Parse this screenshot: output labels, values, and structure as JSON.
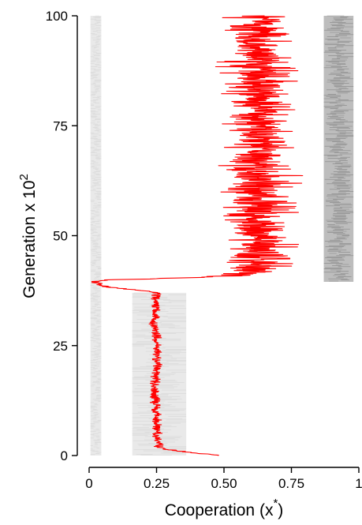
{
  "chart_data": {
    "type": "line",
    "orientation": "time-on-y",
    "xlabel": "Cooperation",
    "xlabel_symbol": "x",
    "xlabel_sup": "*",
    "ylabel": "Generation x 10",
    "ylabel_sup": "2",
    "xlim": [
      0,
      1
    ],
    "ylim": [
      0,
      100
    ],
    "x_ticks": [
      {
        "value": 0,
        "label": "0"
      },
      {
        "value": 0.25,
        "label": "0.25"
      },
      {
        "value": 0.5,
        "label": "0.50"
      },
      {
        "value": 0.75,
        "label": "0.75"
      },
      {
        "value": 1,
        "label": "1"
      }
    ],
    "y_ticks": [
      {
        "value": 0,
        "label": "0"
      },
      {
        "value": 25,
        "label": "25"
      },
      {
        "value": 50,
        "label": "50"
      },
      {
        "value": 75,
        "label": "75"
      },
      {
        "value": 100,
        "label": "100"
      }
    ],
    "grid": false,
    "legend": "none",
    "colors": {
      "mean": "#ff0000",
      "population": "#9a9a9a"
    },
    "series": [
      {
        "role": "mean",
        "points": [
          [
            0.49,
            0
          ],
          [
            0.4,
            0.5
          ],
          [
            0.33,
            1
          ],
          [
            0.28,
            1.5
          ],
          [
            0.26,
            2
          ],
          [
            0.25,
            5
          ],
          [
            0.25,
            10
          ],
          [
            0.24,
            15
          ],
          [
            0.25,
            20
          ],
          [
            0.25,
            25
          ],
          [
            0.24,
            30
          ],
          [
            0.25,
            35
          ],
          [
            0.25,
            37
          ],
          [
            0.2,
            37.5
          ],
          [
            0.12,
            38
          ],
          [
            0.06,
            38.5
          ],
          [
            0.03,
            39
          ],
          [
            0.02,
            39.5
          ],
          [
            0.04,
            39.8
          ],
          [
            0.1,
            40
          ],
          [
            0.3,
            40.3
          ],
          [
            0.45,
            40.6
          ],
          [
            0.55,
            41
          ],
          [
            0.62,
            42
          ],
          [
            0.63,
            50
          ],
          [
            0.63,
            60
          ],
          [
            0.63,
            70
          ],
          [
            0.63,
            80
          ],
          [
            0.63,
            90
          ],
          [
            0.63,
            100
          ]
        ],
        "spread": [
          [
            0,
            2,
            0.012
          ],
          [
            2,
            37,
            0.015
          ],
          [
            37,
            40,
            0.02
          ],
          [
            40,
            41,
            0.05
          ],
          [
            41,
            100,
            0.1
          ]
        ]
      },
      {
        "role": "population",
        "bands": [
          {
            "x": [
              0.005,
              0.045
            ],
            "y": [
              0,
              100
            ]
          },
          {
            "x": [
              0.16,
              0.36
            ],
            "y": [
              0,
              37
            ]
          },
          {
            "x": [
              0.87,
              0.98
            ],
            "y": [
              39.5,
              100
            ]
          }
        ]
      }
    ]
  }
}
